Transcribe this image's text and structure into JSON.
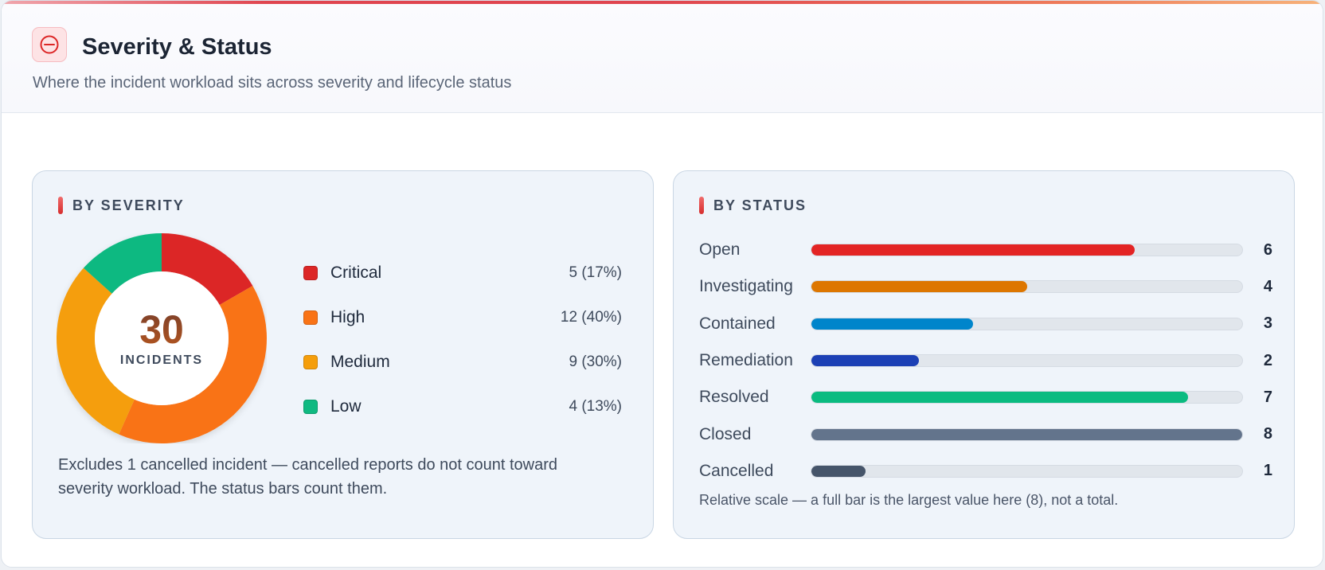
{
  "header": {
    "title": "Severity & Status",
    "subtitle": "Where the incident workload sits across severity and lifecycle status",
    "icon": "circle-minus-icon"
  },
  "severity": {
    "heading": "BY SEVERITY",
    "total": "30",
    "total_label": "INCIDENTS",
    "items": [
      {
        "name": "Critical",
        "count": 5,
        "display": "5 (17%)",
        "color": "#dc2626"
      },
      {
        "name": "High",
        "count": 12,
        "display": "12 (40%)",
        "color": "#f97316"
      },
      {
        "name": "Medium",
        "count": 9,
        "display": "9 (30%)",
        "color": "#f59e0b"
      },
      {
        "name": "Low",
        "count": 4,
        "display": "4 (13%)",
        "color": "#10b981"
      }
    ],
    "note": "Excludes 1 cancelled incident — cancelled reports do not count toward severity workload. The status bars count them."
  },
  "status": {
    "heading": "BY STATUS",
    "items": [
      {
        "name": "Open",
        "count": "6",
        "color": "#dc2626"
      },
      {
        "name": "Investigating",
        "count": "4",
        "color": "#d97706"
      },
      {
        "name": "Contained",
        "count": "3",
        "color": "#0284c7"
      },
      {
        "name": "Remediation",
        "count": "2",
        "color": "#1e40af"
      },
      {
        "name": "Resolved",
        "count": "7",
        "color": "#10b981"
      },
      {
        "name": "Closed",
        "count": "8",
        "color": "#64748b"
      },
      {
        "name": "Cancelled",
        "count": "1",
        "color": "#475569"
      }
    ],
    "max": 8,
    "note": "Relative scale — a full bar is the largest value here (8), not a total."
  }
}
